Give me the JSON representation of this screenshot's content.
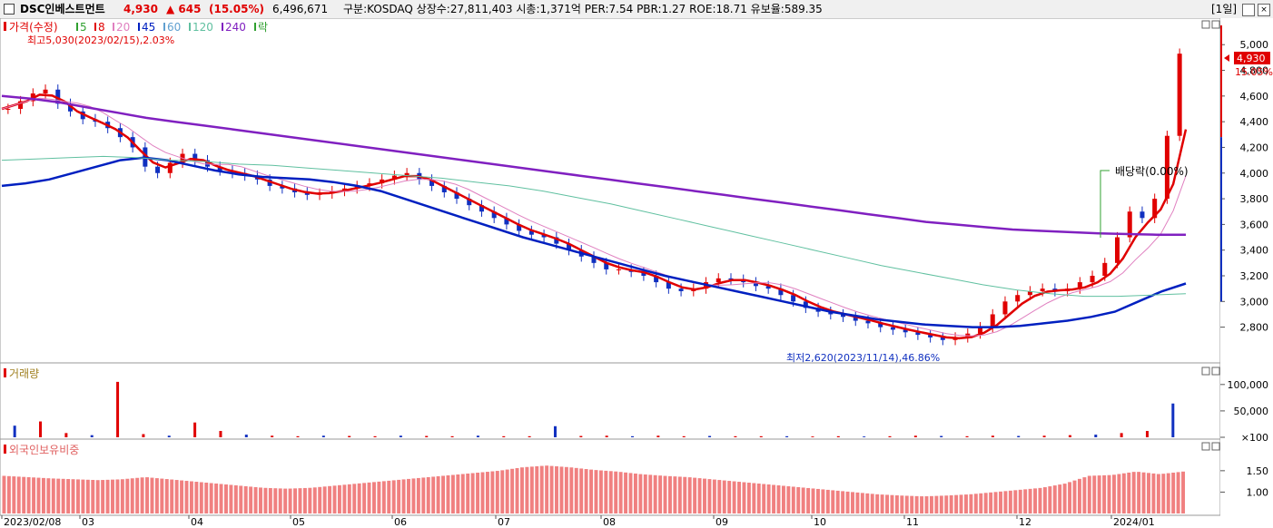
{
  "header": {
    "stock_name": "DSC인베스트먼트",
    "price": "4,930",
    "change": "▲ 645",
    "change_pct": "(15.05%)",
    "volume": "6,496,671",
    "info": "구분:KOSDAQ 상장수:27,811,403 시총:1,371억 PER:7.54 PBR:1.27 ROE:18.71 유보율:589.35",
    "period": "[1일]"
  },
  "colors": {
    "up": "#e00000",
    "down": "#1030c0",
    "ma5": "#30a030",
    "ma8": "#e00000",
    "ma20": "#e080c0",
    "ma45": "#0020c0",
    "ma60": "#60a0d0",
    "ma120": "#60c0a0",
    "ma240": "#8020c0",
    "volume_up": "#e00000",
    "volume_down": "#1030c0",
    "foreign_bar": "#f08080"
  },
  "legend": {
    "price_label": "가격(수정)",
    "ma_items": [
      {
        "label": "5",
        "color_key": "ma5"
      },
      {
        "label": "8",
        "color_key": "ma8"
      },
      {
        "label": "20",
        "color_key": "ma20"
      },
      {
        "label": "45",
        "color_key": "ma45"
      },
      {
        "label": "60",
        "color_key": "ma60"
      },
      {
        "label": "120",
        "color_key": "ma120"
      },
      {
        "label": "240",
        "color_key": "ma240"
      },
      {
        "label": "락",
        "color_key": "ma5"
      }
    ],
    "high_note": "최고5,030(2023/02/15),2.03%",
    "low_note": "최저2,620(2023/11/14),46.86%",
    "dividend_note": "배당락(0.00%)",
    "volume_title": "거래량",
    "foreign_title": "외국인보유비중"
  },
  "chart_data": [
    {
      "type": "candlestick",
      "title": "가격(수정)",
      "ylim": [
        2550,
        5150
      ],
      "y_ticks": [
        "5,000",
        "4,800",
        "4,600",
        "4,400",
        "4,200",
        "4,000",
        "3,800",
        "3,600",
        "3,400",
        "3,200",
        "3,000",
        "2,800"
      ],
      "y_tick_values": [
        5000,
        4800,
        4600,
        4400,
        4200,
        4000,
        3800,
        3600,
        3400,
        3200,
        3000,
        2800
      ],
      "last_price": "4,930",
      "last_pct": "15.05%",
      "last_value": 4930,
      "x_ticks": [
        "2023/02/08",
        "03",
        "04",
        "05",
        "06",
        "07",
        "08",
        "09",
        "10",
        "11",
        "12",
        "2024/01"
      ],
      "closes_sampled": [
        4500,
        4560,
        4620,
        4650,
        4540,
        4480,
        4420,
        4400,
        4350,
        4280,
        4200,
        4050,
        4000,
        4080,
        4150,
        4100,
        4050,
        4020,
        4000,
        3980,
        3950,
        3900,
        3880,
        3850,
        3830,
        3840,
        3860,
        3880,
        3900,
        3920,
        3950,
        3980,
        4000,
        3950,
        3900,
        3850,
        3800,
        3750,
        3700,
        3650,
        3600,
        3550,
        3520,
        3500,
        3450,
        3400,
        3350,
        3300,
        3250,
        3250,
        3230,
        3200,
        3150,
        3100,
        3080,
        3100,
        3150,
        3180,
        3170,
        3150,
        3120,
        3100,
        3050,
        3000,
        2950,
        2920,
        2900,
        2880,
        2850,
        2830,
        2800,
        2780,
        2760,
        2740,
        2720,
        2700,
        2720,
        2750,
        2800,
        2900,
        3000,
        3050,
        3080,
        3100,
        3080,
        3100,
        3150,
        3200,
        3300,
        3500,
        3700,
        3650,
        3800,
        4290,
        4930
      ],
      "ma_series": [
        {
          "name": "45",
          "color_key": "ma45",
          "values": [
            3900,
            3920,
            3950,
            4000,
            4050,
            4100,
            4120,
            4100,
            4060,
            4020,
            3990,
            3970,
            3960,
            3950,
            3930,
            3900,
            3860,
            3800,
            3740,
            3680,
            3620,
            3560,
            3500,
            3450,
            3400,
            3350,
            3300,
            3250,
            3200,
            3160,
            3120,
            3080,
            3040,
            3000,
            2960,
            2920,
            2890,
            2860,
            2840,
            2820,
            2810,
            2800,
            2800,
            2810,
            2830,
            2850,
            2880,
            2920,
            3000,
            3080,
            3140
          ]
        },
        {
          "name": "240",
          "color_key": "ma240",
          "values": [
            4600,
            4580,
            4550,
            4510,
            4470,
            4430,
            4400,
            4370,
            4340,
            4310,
            4280,
            4250,
            4220,
            4190,
            4160,
            4130,
            4100,
            4070,
            4040,
            4010,
            3980,
            3950,
            3920,
            3890,
            3860,
            3830,
            3800,
            3770,
            3740,
            3710,
            3680,
            3650,
            3620,
            3600,
            3580,
            3560,
            3550,
            3540,
            3530,
            3525,
            3520,
            3520
          ]
        },
        {
          "name": "120",
          "color_key": "ma120",
          "values": [
            4100,
            4110,
            4120,
            4130,
            4120,
            4100,
            4090,
            4070,
            4060,
            4040,
            4020,
            4000,
            3980,
            3960,
            3930,
            3900,
            3860,
            3810,
            3760,
            3700,
            3640,
            3580,
            3520,
            3460,
            3400,
            3340,
            3280,
            3230,
            3180,
            3130,
            3090,
            3060,
            3040,
            3040,
            3050,
            3060
          ]
        }
      ]
    },
    {
      "type": "bar",
      "title": "거래량",
      "ylim": [
        0,
        110000
      ],
      "y_ticks": [
        "100,000",
        "50,000",
        "×100"
      ],
      "y_tick_values": [
        100000,
        50000,
        0
      ],
      "values_sampled": [
        22000,
        30000,
        8000,
        4000,
        105000,
        6000,
        3000,
        28000,
        12000,
        5000,
        3000,
        2000,
        3000,
        2500,
        2000,
        3000,
        2500,
        2000,
        3000,
        2000,
        2000,
        21000,
        2500,
        3000,
        2000,
        3000,
        2000,
        2500,
        2000,
        2000,
        2000,
        1500,
        2000,
        1500,
        2000,
        3000,
        2500,
        2000,
        3000,
        2500,
        3000,
        4000,
        5000,
        8000,
        12000,
        64000
      ]
    },
    {
      "type": "bar",
      "title": "외국인보유비중",
      "ylim": [
        0.5,
        1.9
      ],
      "y_ticks": [
        "1.50",
        "1.00"
      ],
      "y_tick_values": [
        1.5,
        1.0
      ],
      "values_sampled": [
        1.38,
        1.35,
        1.32,
        1.3,
        1.28,
        1.3,
        1.35,
        1.3,
        1.25,
        1.2,
        1.15,
        1.1,
        1.08,
        1.1,
        1.15,
        1.2,
        1.25,
        1.3,
        1.35,
        1.4,
        1.45,
        1.5,
        1.58,
        1.62,
        1.58,
        1.52,
        1.48,
        1.42,
        1.38,
        1.35,
        1.3,
        1.25,
        1.2,
        1.15,
        1.1,
        1.05,
        1.0,
        0.95,
        0.92,
        0.9,
        0.92,
        0.95,
        1.0,
        1.05,
        1.1,
        1.2,
        1.38,
        1.4,
        1.48,
        1.42,
        1.48
      ]
    }
  ]
}
